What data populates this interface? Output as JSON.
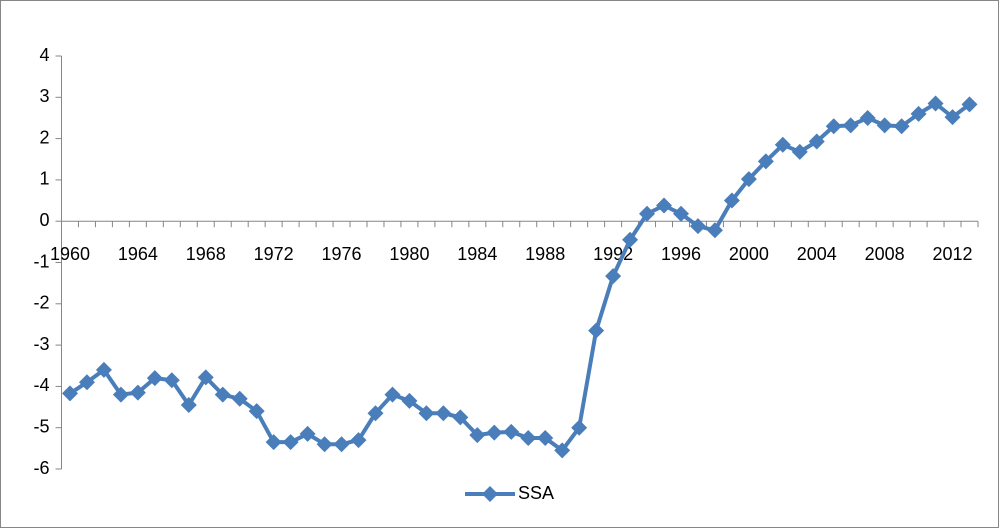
{
  "chart_data": {
    "type": "line",
    "categories": [
      "1960",
      null,
      null,
      null,
      "1964",
      null,
      null,
      null,
      "1968",
      null,
      null,
      null,
      "1972",
      null,
      null,
      null,
      "1976",
      null,
      null,
      null,
      "1980",
      null,
      null,
      null,
      "1984",
      null,
      null,
      null,
      "1988",
      null,
      null,
      null,
      "1992",
      null,
      null,
      null,
      "1996",
      null,
      null,
      null,
      "2000",
      null,
      null,
      null,
      "2004",
      null,
      null,
      null,
      "2008",
      null,
      null,
      null,
      "2012",
      null
    ],
    "series": [
      {
        "name": "SSA",
        "color": "#4a7ebb",
        "values": [
          -4.17,
          -3.9,
          -3.6,
          -4.2,
          -4.15,
          -3.8,
          -3.85,
          -4.45,
          -3.78,
          -4.2,
          -4.3,
          -4.6,
          -5.35,
          -5.35,
          -5.15,
          -5.4,
          -5.4,
          -5.3,
          -4.65,
          -4.2,
          -4.35,
          -4.65,
          -4.65,
          -4.75,
          -5.18,
          -5.12,
          -5.1,
          -5.25,
          -5.25,
          -5.55,
          -5.0,
          -2.65,
          -1.33,
          -0.45,
          0.18,
          0.38,
          0.18,
          -0.12,
          -0.22,
          0.5,
          1.02,
          1.45,
          1.85,
          1.68,
          1.93,
          2.3,
          2.32,
          2.5,
          2.32,
          2.3,
          2.6,
          2.85,
          2.52,
          2.83
        ]
      }
    ],
    "ylim": [
      -6,
      4
    ],
    "yticks": [
      -6,
      -5,
      -4,
      -3,
      -2,
      -1,
      0,
      1,
      2,
      3,
      4
    ],
    "legend": "bottom"
  }
}
